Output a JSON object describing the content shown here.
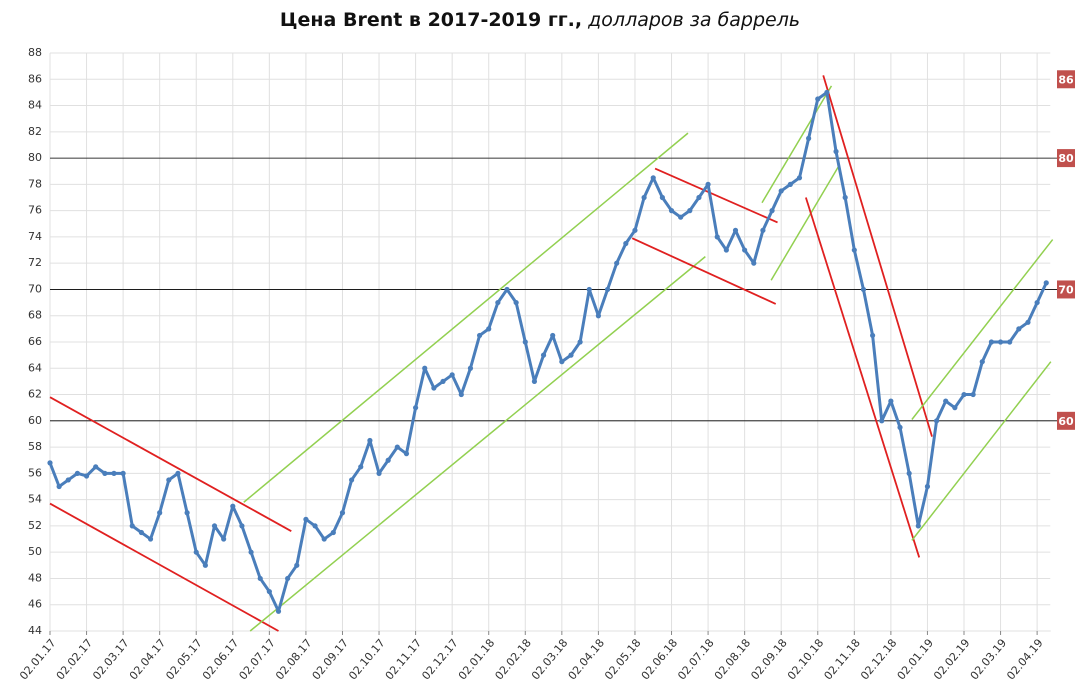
{
  "chart_data": {
    "type": "line",
    "title": "Цена Brent в 2017-2019 гг.,",
    "subtitle": "долларов за баррель",
    "categories": [
      "02.01.17",
      null,
      null,
      null,
      "02.02.17",
      null,
      null,
      null,
      "02.03.17",
      null,
      null,
      null,
      "02.04.17",
      null,
      null,
      null,
      "02.05.17",
      null,
      null,
      null,
      "02.06.17",
      null,
      null,
      null,
      "02.07.17",
      null,
      null,
      null,
      "02.08.17",
      null,
      null,
      null,
      "02.09.17",
      null,
      null,
      null,
      "02.10.17",
      null,
      null,
      null,
      "02.11.17",
      null,
      null,
      null,
      "02.12.17",
      null,
      null,
      null,
      "02.01.18",
      null,
      null,
      null,
      "02.02.18",
      null,
      null,
      null,
      "02.03.18",
      null,
      null,
      null,
      "02.04.18",
      null,
      null,
      null,
      "02.05.18",
      null,
      null,
      null,
      "02.06.18",
      null,
      null,
      null,
      "02.07.18",
      null,
      null,
      null,
      "02.08.18",
      null,
      null,
      null,
      "02.09.18",
      null,
      null,
      null,
      "02.10.18",
      null,
      null,
      null,
      "02.11.18",
      null,
      null,
      null,
      "02.12.18",
      null,
      null,
      null,
      "02.01.19",
      null,
      null,
      null,
      "02.02.19",
      null,
      null,
      null,
      "02.03.19",
      null,
      null,
      null,
      "02.04.19",
      null
    ],
    "series": [
      {
        "name": "Brent",
        "color": "#4a7ebb",
        "values": [
          56.8,
          55,
          55.5,
          56,
          55.8,
          56.5,
          56,
          56,
          56,
          52,
          51.5,
          51,
          53,
          55.5,
          56,
          53,
          50,
          49,
          52,
          51,
          53.5,
          52,
          50,
          48,
          47,
          45.5,
          48,
          49,
          52.5,
          52,
          51,
          51.5,
          53,
          55.5,
          56.5,
          58.5,
          56,
          57,
          58,
          57.5,
          61,
          64,
          62.5,
          63,
          63.5,
          62,
          64,
          66.5,
          67,
          69,
          70,
          69,
          66,
          63,
          65,
          66.5,
          64.5,
          65,
          66,
          70,
          68,
          70,
          72,
          73.5,
          74.5,
          77,
          78.5,
          77,
          76,
          75.5,
          76,
          77,
          78,
          74,
          73,
          74.5,
          73,
          72,
          74.5,
          76,
          77.5,
          78,
          78.5,
          81.5,
          84.5,
          85,
          80.5,
          77,
          73,
          70,
          66.5,
          60,
          61.5,
          59.5,
          56,
          52,
          55,
          60,
          61.5,
          61,
          62,
          62,
          64.5,
          66,
          66,
          66,
          67,
          67.5,
          69,
          70.5
        ]
      }
    ],
    "ylim": [
      44,
      88
    ],
    "yticks": [
      44,
      46,
      48,
      50,
      52,
      54,
      56,
      58,
      60,
      62,
      64,
      66,
      68,
      70,
      72,
      74,
      76,
      78,
      80,
      82,
      84,
      86,
      88
    ],
    "grid": true,
    "reference_lines": [
      80,
      70,
      60
    ],
    "reference_labels": [
      86,
      80,
      70,
      60
    ],
    "trend_lines": [
      {
        "color": "#e02020",
        "points": [
          [
            0,
            61.8
          ],
          [
            26.4,
            51.6
          ]
        ]
      },
      {
        "color": "#e02020",
        "points": [
          [
            0,
            53.7
          ],
          [
            25,
            44
          ]
        ]
      },
      {
        "color": "#92d050",
        "points": [
          [
            21.2,
            53.8
          ],
          [
            69.8,
            81.9
          ]
        ]
      },
      {
        "color": "#92d050",
        "points": [
          [
            21.9,
            44
          ],
          [
            71.7,
            72.5
          ]
        ]
      },
      {
        "color": "#e02020",
        "points": [
          [
            66.2,
            79.2
          ],
          [
            79.6,
            75.1
          ]
        ]
      },
      {
        "color": "#e02020",
        "points": [
          [
            63.7,
            73.9
          ],
          [
            79.4,
            68.9
          ]
        ]
      },
      {
        "color": "#92d050",
        "points": [
          [
            77.9,
            76.6
          ],
          [
            85.5,
            85.5
          ]
        ]
      },
      {
        "color": "#92d050",
        "points": [
          [
            78.9,
            70.7
          ],
          [
            86.3,
            79.4
          ]
        ]
      },
      {
        "color": "#e02020",
        "points": [
          [
            84.6,
            86.3
          ],
          [
            96.5,
            58.8
          ]
        ]
      },
      {
        "color": "#e02020",
        "points": [
          [
            82.7,
            77
          ],
          [
            95.1,
            49.6
          ]
        ]
      },
      {
        "color": "#92d050",
        "points": [
          [
            94.3,
            60.1
          ],
          [
            109.7,
            73.8
          ]
        ]
      },
      {
        "color": "#92d050",
        "points": [
          [
            94.3,
            50.9
          ],
          [
            109.5,
            64.5
          ]
        ]
      }
    ]
  }
}
